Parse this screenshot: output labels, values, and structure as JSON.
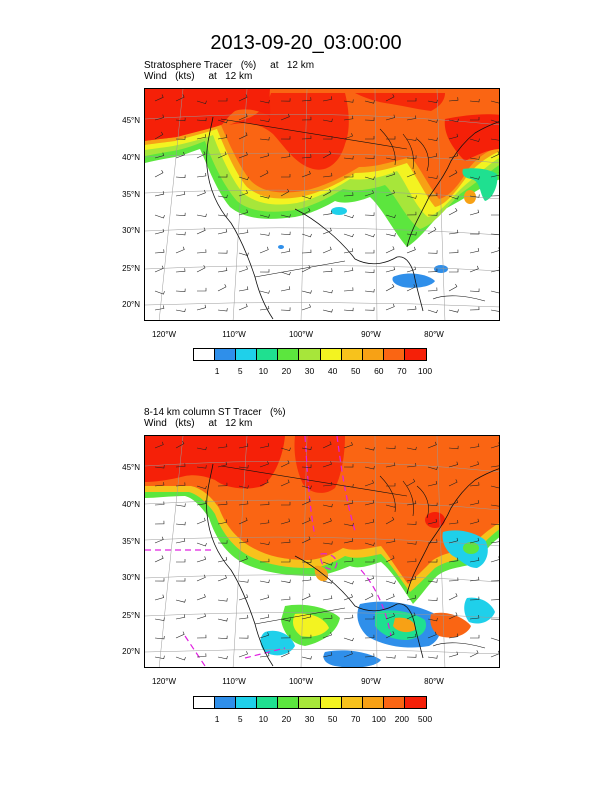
{
  "figure": {
    "title": "2013-09-20_03:00:00"
  },
  "panels": [
    {
      "title_line1": "Stratosphere Tracer   (%)     at   12 km",
      "title_line2": "Wind   (kts)     at   12 km",
      "lat_labels": [
        "45°N",
        "40°N",
        "35°N",
        "30°N",
        "25°N",
        "20°N"
      ],
      "lon_labels": [
        "120°W",
        "110°W",
        "100°W",
        "90°W",
        "80°W"
      ],
      "colorbar": {
        "colors": [
          "#ffffff",
          "#2f8fea",
          "#1fd0ea",
          "#1fe090",
          "#5ce63e",
          "#a7e63a",
          "#f3f321",
          "#f7c21c",
          "#f7a115",
          "#fa6513",
          "#f52008"
        ],
        "labels": [
          "1",
          "5",
          "10",
          "20",
          "30",
          "40",
          "50",
          "60",
          "70",
          "100"
        ]
      }
    },
    {
      "title_line1": "8-14 km column ST Tracer   (%)",
      "title_line2": "Wind   (kts)     at   12 km",
      "lat_labels": [
        "45°N",
        "40°N",
        "35°N",
        "30°N",
        "25°N",
        "20°N"
      ],
      "lon_labels": [
        "120°W",
        "110°W",
        "100°W",
        "90°W",
        "80°W"
      ],
      "colorbar": {
        "colors": [
          "#ffffff",
          "#2f8fea",
          "#1fd0ea",
          "#1fe090",
          "#5ce63e",
          "#a7e63a",
          "#f3f321",
          "#f7c21c",
          "#f7a115",
          "#fa6513",
          "#f52008"
        ],
        "labels": [
          "1",
          "5",
          "10",
          "20",
          "30",
          "50",
          "70",
          "100",
          "200",
          "500"
        ]
      }
    }
  ]
}
